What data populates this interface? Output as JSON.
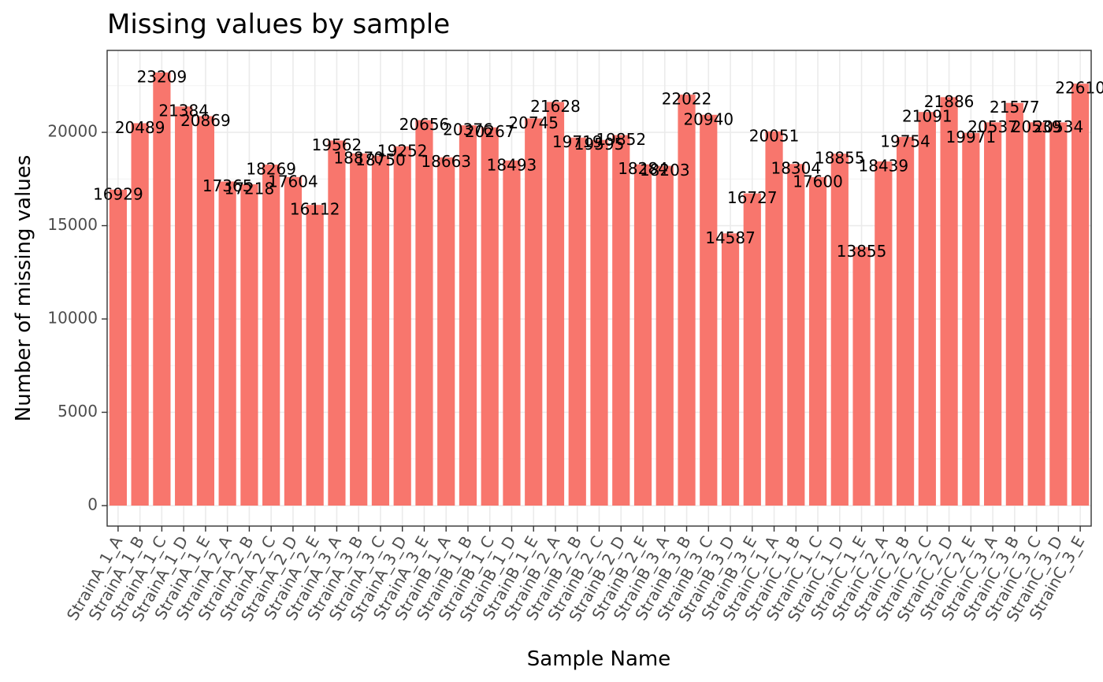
{
  "chart_data": {
    "type": "bar",
    "title": "Missing values by sample",
    "xlabel": "Sample Name",
    "ylabel": "Number of missing values",
    "ylim": [
      0,
      23209
    ],
    "yticks": [
      0,
      5000,
      10000,
      15000,
      20000
    ],
    "ytick_labels": [
      "0",
      "5000",
      "10000",
      "15000",
      "20000"
    ],
    "grid": true,
    "bar_color": "#F8766D",
    "categories": [
      "StrainA_1_A",
      "StrainA_1_B",
      "StrainA_1_C",
      "StrainA_1_D",
      "StrainA_1_E",
      "StrainA_2_A",
      "StrainA_2_B",
      "StrainA_2_C",
      "StrainA_2_D",
      "StrainA_2_E",
      "StrainA_3_A",
      "StrainA_3_B",
      "StrainA_3_C",
      "StrainA_3_D",
      "StrainA_3_E",
      "StrainB_1_A",
      "StrainB_1_B",
      "StrainB_1_C",
      "StrainB_1_D",
      "StrainB_1_E",
      "StrainB_2_A",
      "StrainB_2_B",
      "StrainB_2_C",
      "StrainB_2_D",
      "StrainB_2_E",
      "StrainB_3_A",
      "StrainB_3_B",
      "StrainB_3_C",
      "StrainB_3_D",
      "StrainB_3_E",
      "StrainC_1_A",
      "StrainC_1_B",
      "StrainC_1_C",
      "StrainC_1_D",
      "StrainC_1_E",
      "StrainC_2_A",
      "StrainC_2_B",
      "StrainC_2_C",
      "StrainC_2_D",
      "StrainC_2_E",
      "StrainC_3_A",
      "StrainC_3_B",
      "StrainC_3_C",
      "StrainC_3_D",
      "StrainC_3_E"
    ],
    "values": [
      16929,
      20489,
      23209,
      21384,
      20869,
      17365,
      17218,
      18269,
      17604,
      16112,
      19562,
      18870,
      18750,
      19252,
      20656,
      18663,
      20376,
      20267,
      18493,
      20745,
      21628,
      19719,
      19595,
      19852,
      18284,
      18203,
      22022,
      20940,
      14587,
      16727,
      20051,
      18304,
      17600,
      18855,
      13855,
      18439,
      19754,
      21091,
      21886,
      19971,
      20537,
      21577,
      20539,
      20534,
      22610
    ],
    "value_labels": [
      "16929",
      "20489",
      "23209",
      "21384",
      "20869",
      "17365",
      "17218",
      "18269",
      "17604",
      "16112",
      "19562",
      "18870",
      "18750",
      "19252",
      "20656",
      "18663",
      "20376",
      "20267",
      "18493",
      "20745",
      "21628",
      "19719",
      "19595",
      "19852",
      "18284",
      "18203",
      "22022",
      "20940",
      "14587",
      "16727",
      "20051",
      "18304",
      "17600",
      "18855",
      "13855",
      "18439",
      "19754",
      "21091",
      "21886",
      "19971",
      "20537",
      "21577",
      "20539",
      "20534",
      "22610"
    ]
  }
}
